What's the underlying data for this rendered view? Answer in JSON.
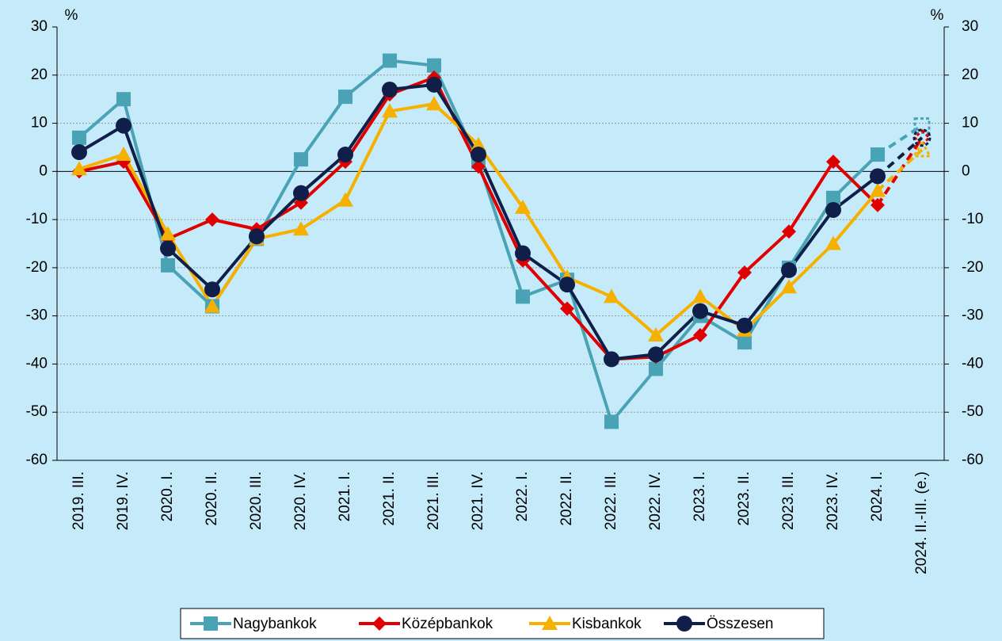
{
  "chart_data": {
    "type": "line",
    "y_unit": "%",
    "categories": [
      "2019. III.",
      "2019. IV.",
      "2020. I.",
      "2020. II.",
      "2020. III.",
      "2020. IV.",
      "2021. I.",
      "2021. II.",
      "2021. III.",
      "2021. IV.",
      "2022. I.",
      "2022. II.",
      "2022. III.",
      "2022. IV.",
      "2023. I.",
      "2023. II.",
      "2023. III.",
      "2023. IV.",
      "2024. I.",
      "2024. II.-III. (e.)"
    ],
    "series": [
      {
        "name": "Nagybankok",
        "color": "#4aa3b5",
        "marker": "square",
        "values": [
          7,
          15,
          -19.5,
          -28,
          -14,
          2.5,
          15.5,
          23,
          22,
          2,
          -26,
          -22.5,
          -52,
          -41,
          -30,
          -35.5,
          -20,
          -5.5,
          3.5,
          9.5
        ]
      },
      {
        "name": "Középbankok",
        "color": "#e00000",
        "marker": "diamond",
        "values": [
          0,
          2,
          -14,
          -10,
          -12,
          -6.5,
          2,
          16,
          19.5,
          1,
          -18.5,
          -28.5,
          -39,
          -38.5,
          -34,
          -21,
          -12.5,
          2,
          -7,
          7
        ]
      },
      {
        "name": "Kisbankok",
        "color": "#f5b000",
        "marker": "triangle",
        "values": [
          0.5,
          3.5,
          -13,
          -28,
          -14,
          -12,
          -6,
          12.5,
          14,
          5.5,
          -7.5,
          -22,
          -26,
          -34,
          -26,
          -33,
          -24,
          -15,
          -4,
          4.5
        ]
      },
      {
        "name": "Összesen",
        "color": "#0f1f4a",
        "marker": "circle",
        "values": [
          4,
          9.5,
          -16,
          -24.5,
          -13.5,
          -4.5,
          3.5,
          17,
          18,
          3.5,
          -17,
          -23.5,
          -39,
          -38,
          -29,
          -32,
          -20.5,
          -8,
          -1,
          7
        ]
      }
    ],
    "ylim": [
      -60,
      30
    ],
    "yticks": [
      -60,
      -50,
      -40,
      -30,
      -20,
      -10,
      0,
      10,
      20,
      30
    ],
    "y2lim": [
      -60,
      30
    ],
    "y2ticks": [
      -60,
      -50,
      -40,
      -30,
      -20,
      -10,
      0,
      10,
      20,
      30
    ],
    "grid": true,
    "legend": "bottom"
  }
}
